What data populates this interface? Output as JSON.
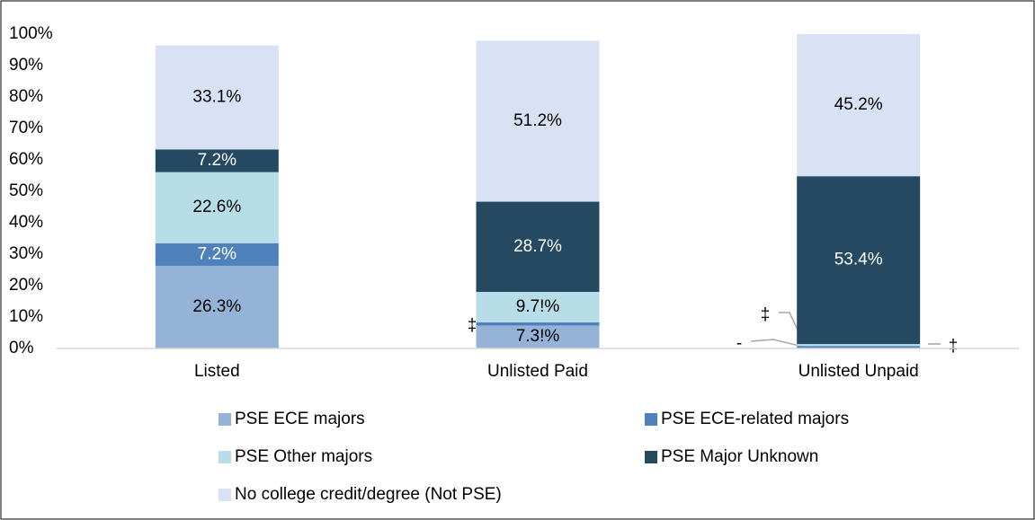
{
  "chart_data": {
    "type": "stacked_bar",
    "categories": [
      "Listed",
      "Unlisted Paid",
      "Unlisted Unpaid"
    ],
    "series": [
      {
        "name": "PSE ECE majors",
        "color": "#95b3d7",
        "values": [
          26.3,
          7.3,
          0
        ],
        "value_labels": [
          "26.3%",
          "7.3!%",
          "-"
        ]
      },
      {
        "name": "PSE ECE-related majors",
        "color": "#4f81bd",
        "values": [
          7.2,
          1.0,
          0.8
        ],
        "value_labels": [
          "7.2%",
          "‡",
          "‡"
        ]
      },
      {
        "name": "PSE Other majors",
        "color": "#b7dee8",
        "values": [
          22.6,
          9.7,
          0.6
        ],
        "value_labels": [
          "22.6%",
          "9.7!%",
          "‡"
        ]
      },
      {
        "name": "PSE Major Unknown",
        "color": "#254961",
        "values": [
          7.2,
          28.7,
          53.4
        ],
        "value_labels": [
          "7.2%",
          "28.7%",
          "53.4%"
        ]
      },
      {
        "name": "No college credit/degree (Not PSE)",
        "color": "#d9e1f5",
        "values": [
          33.1,
          51.2,
          45.2
        ],
        "value_labels": [
          "33.1%",
          "51.2%",
          "45.2%"
        ]
      }
    ],
    "ylim": [
      0,
      100
    ],
    "yticks": [
      {
        "value": 0,
        "label": "0%"
      },
      {
        "value": 10,
        "label": "10%"
      },
      {
        "value": 20,
        "label": "20%"
      },
      {
        "value": 30,
        "label": "30%"
      },
      {
        "value": 40,
        "label": "40%"
      },
      {
        "value": 50,
        "label": "50%"
      },
      {
        "value": 60,
        "label": "60%"
      },
      {
        "value": 70,
        "label": "70%"
      },
      {
        "value": 80,
        "label": "80%"
      },
      {
        "value": 90,
        "label": "90%"
      },
      {
        "value": 100,
        "label": "100%"
      }
    ],
    "legend": "bottom"
  }
}
